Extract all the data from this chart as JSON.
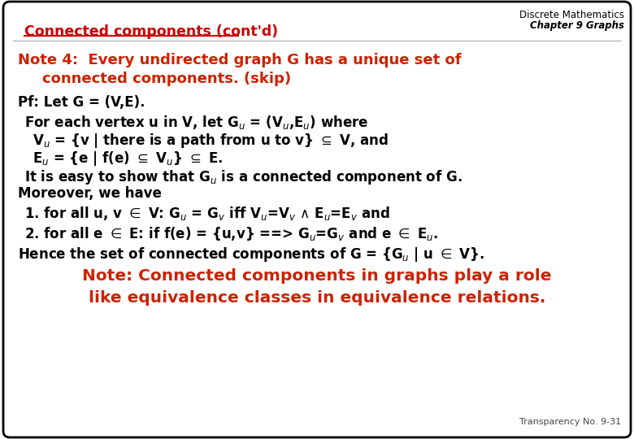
{
  "bg_color": "#ffffff",
  "border_color": "#000000",
  "title_text": "Connected components (cont'd)",
  "title_color": "#cc0000",
  "header_line1": "Discrete Mathematics",
  "header_line2": "Chapter 9 Graphs",
  "header_color": "#000000",
  "footer_text": "Transparency No. 9-31",
  "note_red": "#cc2200",
  "body_color": "#000000",
  "note_large_color": "#cc2200"
}
